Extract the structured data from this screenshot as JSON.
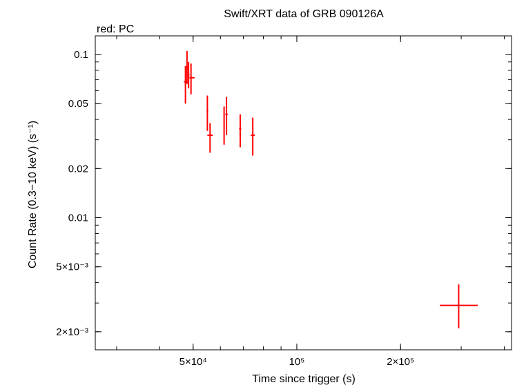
{
  "chart_data": {
    "type": "scatter",
    "title": "Swift/XRT data of GRB 090126A",
    "subtitle": "red: PC",
    "xlabel": "Time since trigger (s)",
    "ylabel": "Count Rate (0.3−10 keV) (s⁻¹)",
    "xscale": "log",
    "yscale": "log",
    "xlim": [
      26000,
      420000
    ],
    "ylim": [
      0.00155,
      0.13
    ],
    "grid": false,
    "x_ticks": [
      {
        "value": 50000,
        "label": "5×10⁴"
      },
      {
        "value": 100000,
        "label": "10⁵"
      },
      {
        "value": 200000,
        "label": "2×10⁵"
      }
    ],
    "y_ticks": [
      {
        "value": 0.1,
        "label": "0.1"
      },
      {
        "value": 0.05,
        "label": "0.05"
      },
      {
        "value": 0.02,
        "label": "0.02"
      },
      {
        "value": 0.01,
        "label": "0.01"
      },
      {
        "value": 0.005,
        "label": "5×10⁻³"
      },
      {
        "value": 0.002,
        "label": "2×10⁻³"
      }
    ],
    "series": [
      {
        "name": "PC",
        "color": "#ff0000",
        "points": [
          {
            "x": 47500,
            "xerr": [
              47000,
              48000
            ],
            "y": 0.068,
            "yerr": [
              0.05,
              0.085
            ]
          },
          {
            "x": 48000,
            "xerr": [
              47700,
              48300
            ],
            "y": 0.082,
            "yerr": [
              0.066,
              0.105
            ]
          },
          {
            "x": 48500,
            "xerr": [
              48200,
              48800
            ],
            "y": 0.075,
            "yerr": [
              0.062,
              0.09
            ]
          },
          {
            "x": 49300,
            "xerr": [
              48800,
              50500
            ],
            "y": 0.072,
            "yerr": [
              0.057,
              0.088
            ]
          },
          {
            "x": 55000,
            "xerr": [
              54700,
              55300
            ],
            "y": 0.045,
            "yerr": [
              0.034,
              0.056
            ]
          },
          {
            "x": 56000,
            "xerr": [
              55000,
              57000
            ],
            "y": 0.032,
            "yerr": [
              0.025,
              0.038
            ]
          },
          {
            "x": 61500,
            "xerr": [
              61200,
              61800
            ],
            "y": 0.038,
            "yerr": [
              0.028,
              0.048
            ]
          },
          {
            "x": 62500,
            "xerr": [
              62000,
              63000
            ],
            "y": 0.043,
            "yerr": [
              0.032,
              0.055
            ]
          },
          {
            "x": 68500,
            "xerr": [
              68000,
              69000
            ],
            "y": 0.035,
            "yerr": [
              0.027,
              0.043
            ]
          },
          {
            "x": 74500,
            "xerr": [
              73500,
              75500
            ],
            "y": 0.032,
            "yerr": [
              0.024,
              0.041
            ]
          },
          {
            "x": 295000,
            "xerr": [
              260000,
              335000
            ],
            "y": 0.0029,
            "yerr": [
              0.0021,
              0.0039
            ]
          }
        ]
      }
    ]
  }
}
